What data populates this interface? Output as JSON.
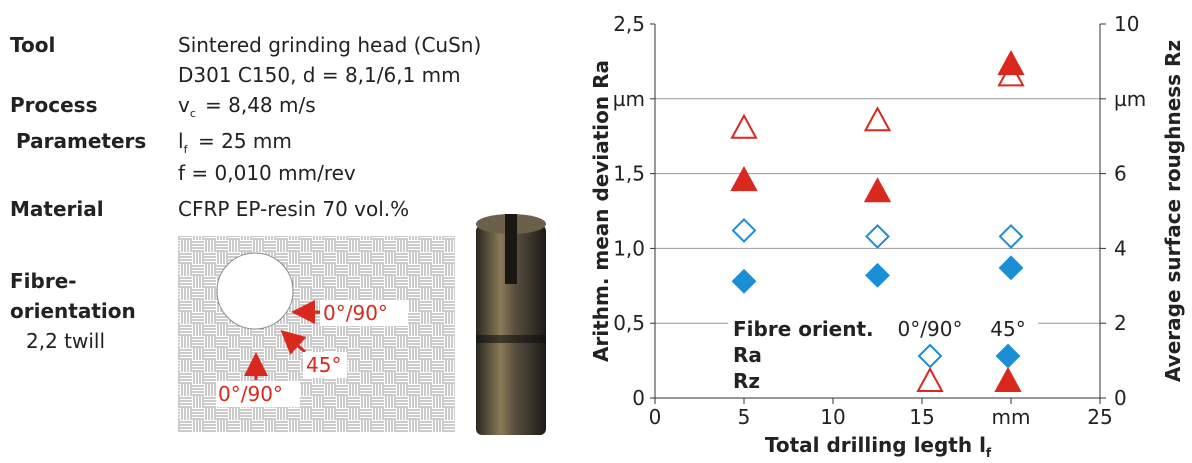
{
  "specs": {
    "tool": {
      "label": "Tool",
      "value": [
        "Sintered grinding head (CuSn)",
        "D301 C150, d = 8,1/6,1 mm"
      ]
    },
    "process": {
      "label": "Process",
      "label2": "Parameters",
      "speed": {
        "symbol": "v",
        "sub": "c",
        "text": "= 8,48 m/s"
      },
      "length": {
        "symbol": "l",
        "sub": "f",
        "text": "= 25 mm"
      },
      "feed": "f = 0,010 mm/rev"
    },
    "material": {
      "label": "Material",
      "value": "CFRP EP-resin 70 vol.%"
    },
    "fibre": {
      "label": [
        "Fibre-",
        "orientation"
      ],
      "value": "2,2 twill"
    }
  },
  "diagram": {
    "labels": [
      "0°/90°",
      "45°",
      "0°/90°"
    ]
  },
  "chart_data": {
    "type": "scatter",
    "xlabel": "Total drilling legth l",
    "xlabel_sub": "f",
    "ylabel": "Arithm. mean deviation Ra",
    "y2label": "Average surface roughness Rz",
    "xlim": [
      0,
      25
    ],
    "xticks": [
      0,
      5,
      10,
      15,
      {
        "value": 20,
        "label": "mm"
      },
      25
    ],
    "ylim": [
      0,
      2.5
    ],
    "yticks": [
      0,
      {
        "value": 0.5,
        "label": "0,5"
      },
      {
        "value": 1,
        "label": "1,0"
      },
      {
        "value": 1.5,
        "label": "1,5"
      },
      {
        "value": 2,
        "label": "µm"
      },
      {
        "value": 2.5,
        "label": "2,5"
      }
    ],
    "y2lim": [
      0,
      10
    ],
    "y2ticks": [
      0,
      2,
      4,
      6,
      {
        "value": 8,
        "label": "µm"
      },
      10
    ],
    "grid": true,
    "legend": {
      "title": "Fibre orient.",
      "columns": [
        "0°/90°",
        "45°"
      ],
      "rows": [
        "Ra",
        "Rz"
      ]
    },
    "series": [
      {
        "marker": "diamond",
        "fill": "open",
        "color": "#1a8fd6",
        "x": [
          5,
          12.5,
          20
        ],
        "values": [
          1.12,
          1.08,
          1.08
        ]
      },
      {
        "marker": "diamond",
        "fill": "filled",
        "color": "#1a8fd6",
        "x": [
          5,
          12.5,
          20
        ],
        "values": [
          0.78,
          0.82,
          0.87
        ]
      },
      {
        "marker": "triangle",
        "fill": "open",
        "color": "#d9281e",
        "axis": "y2",
        "x": [
          5,
          12.5,
          20
        ],
        "values": [
          7.2,
          7.4,
          8.6
        ]
      },
      {
        "marker": "triangle",
        "fill": "filled",
        "color": "#d9281e",
        "axis": "y2",
        "x": [
          5,
          12.5,
          20
        ],
        "values": [
          5.8,
          5.5,
          8.9
        ]
      }
    ]
  }
}
